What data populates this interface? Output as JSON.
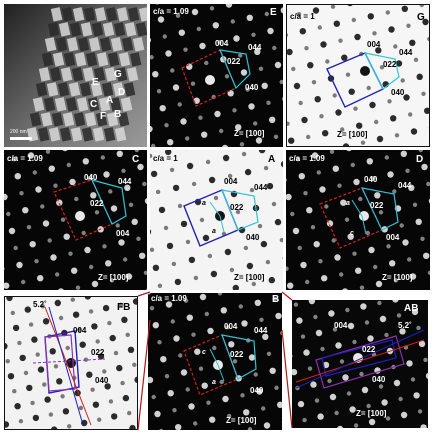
{
  "figure": {
    "tem_image": {
      "region_letters": [
        "E",
        "G",
        "D",
        "C",
        "A",
        "F",
        "B"
      ],
      "scale_bar_label": "200 nm"
    },
    "panels": {
      "E": {
        "letter": "E",
        "ratio": "c/a = 1.09",
        "zone": "Z= [100]",
        "spots": [
          "004",
          "044",
          "022",
          "040"
        ]
      },
      "G": {
        "letter": "G",
        "ratio": "c/a = 1",
        "zone": "Z= [100]",
        "spots": [
          "004",
          "044",
          "022",
          "040"
        ]
      },
      "C": {
        "letter": "C",
        "ratio": "c/a = 1.09",
        "zone": "Z= [100]",
        "spots": [
          "040",
          "044",
          "022",
          "004"
        ]
      },
      "A": {
        "letter": "A",
        "ratio": "c/a = 1",
        "zone": "Z= [100]",
        "spots": [
          "004",
          "044",
          "022",
          "040"
        ],
        "vectors": [
          "a",
          "a"
        ]
      },
      "D": {
        "letter": "D",
        "ratio": "c/a = 1.09",
        "zone": "Z= [100]",
        "spots": [
          "040",
          "044",
          "022",
          "004"
        ],
        "vectors": [
          "a",
          "c"
        ]
      },
      "FB": {
        "letter": "FB",
        "angle": "5.2˚",
        "spots": [
          "004",
          "022",
          "040"
        ]
      },
      "B": {
        "letter": "B",
        "ratio": "c/a = 1.09",
        "zone": "Z= [100]",
        "spots": [
          "004",
          "044",
          "022",
          "040"
        ],
        "vectors": [
          "c",
          "a"
        ]
      },
      "AB": {
        "letter": "AB",
        "angle": "5.2˚",
        "zone": "Z= [100]",
        "spots": [
          "004",
          "022",
          "040"
        ]
      }
    }
  }
}
